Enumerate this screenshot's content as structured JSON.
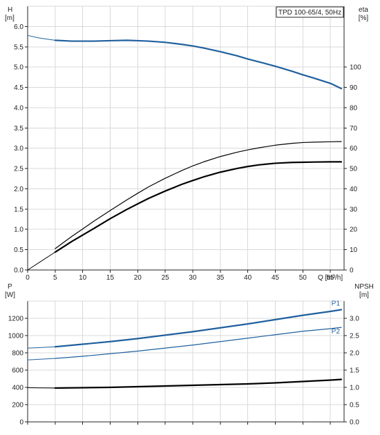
{
  "colors": {
    "blue": "#1f5f9e",
    "black": "#000000",
    "grid": "#d9d9d9"
  },
  "chart_data": [
    {
      "type": "line",
      "title": "TPD 100-65/4, 50Hz",
      "xlabel": "Q [m³/h]",
      "ylabel_left": "H\n[m]",
      "ylabel_right": "eta\n[%]",
      "xlim": [
        0,
        57.5
      ],
      "ylim_left": [
        0,
        6.5
      ],
      "ylim_right": [
        0,
        130
      ],
      "x_ticks": [
        0,
        5,
        10,
        15,
        20,
        25,
        30,
        35,
        40,
        45,
        50,
        55
      ],
      "y_left_ticks": [
        0.0,
        0.5,
        1.0,
        1.5,
        2.0,
        2.5,
        3.0,
        3.5,
        4.0,
        4.5,
        5.0,
        5.5,
        6.0
      ],
      "y_right_ticks": [
        0,
        10,
        20,
        30,
        40,
        50,
        60,
        70,
        80,
        90,
        100
      ],
      "grid": true,
      "series": [
        {
          "id": "H-ext",
          "axis": "left",
          "color": "#1f5f9e",
          "width": 1,
          "x": [
            0,
            2,
            5
          ],
          "y": [
            5.78,
            5.72,
            5.66
          ]
        },
        {
          "id": "H",
          "axis": "left",
          "color": "#1f5f9e",
          "width": 2.2,
          "x": [
            5,
            8,
            10,
            12,
            15,
            18,
            20,
            22,
            25,
            28,
            30,
            32,
            35,
            38,
            40,
            42,
            45,
            48,
            50,
            52,
            55,
            57
          ],
          "y": [
            5.66,
            5.64,
            5.64,
            5.64,
            5.65,
            5.66,
            5.65,
            5.64,
            5.61,
            5.56,
            5.52,
            5.47,
            5.38,
            5.28,
            5.2,
            5.13,
            5.02,
            4.9,
            4.81,
            4.73,
            4.6,
            4.47
          ]
        },
        {
          "id": "eta-ext",
          "axis": "right",
          "color": "#000000",
          "width": 1,
          "x": [
            0,
            2,
            5
          ],
          "y": [
            0,
            3.5,
            8.8
          ]
        },
        {
          "id": "eta-1",
          "axis": "right",
          "color": "#000000",
          "width": 1.2,
          "x": [
            5,
            8,
            10,
            12,
            15,
            18,
            20,
            22,
            25,
            28,
            30,
            32,
            35,
            38,
            40,
            42,
            45,
            48,
            50,
            52,
            55,
            57
          ],
          "y": [
            10.5,
            16.5,
            20.2,
            24.0,
            29.3,
            34.5,
            37.8,
            41.0,
            45.2,
            49.0,
            51.3,
            53.3,
            55.9,
            58.0,
            59.2,
            60.2,
            61.5,
            62.4,
            62.8,
            63.0,
            63.2,
            63.3
          ]
        },
        {
          "id": "eta-2",
          "axis": "right",
          "color": "#000000",
          "width": 2.2,
          "x": [
            5,
            8,
            10,
            12,
            15,
            18,
            20,
            22,
            25,
            28,
            30,
            32,
            35,
            38,
            40,
            42,
            45,
            48,
            50,
            52,
            55,
            57
          ],
          "y": [
            8.8,
            14.0,
            17.2,
            20.4,
            25.3,
            29.8,
            32.6,
            35.3,
            38.9,
            42.2,
            44.1,
            45.9,
            48.2,
            50.0,
            51.0,
            51.8,
            52.6,
            53.0,
            53.1,
            53.2,
            53.3,
            53.3
          ]
        }
      ]
    },
    {
      "type": "line",
      "xlabel": "",
      "ylabel_left": "P\n[W]",
      "ylabel_right": "NPSH\n[m]",
      "xlim": [
        0,
        57.5
      ],
      "ylim_left": [
        0,
        1400
      ],
      "ylim_right": [
        0,
        3.5
      ],
      "x_ticks": [
        0,
        5,
        10,
        15,
        20,
        25,
        30,
        35,
        40,
        45,
        50,
        55
      ],
      "y_left_ticks": [
        0,
        200,
        400,
        600,
        800,
        1000,
        1200
      ],
      "y_right_ticks": [
        0.0,
        0.5,
        1.0,
        1.5,
        2.0,
        2.5,
        3.0
      ],
      "grid": true,
      "series": [
        {
          "id": "P1-ext",
          "name": "",
          "axis": "left",
          "color": "#1f5f9e",
          "width": 1,
          "x": [
            0,
            2,
            5
          ],
          "y": [
            855,
            860,
            870
          ]
        },
        {
          "id": "P1",
          "name": "P1",
          "axis": "left",
          "color": "#1f5f9e",
          "width": 2.2,
          "x": [
            5,
            10,
            15,
            20,
            25,
            30,
            35,
            40,
            45,
            50,
            55,
            57
          ],
          "y": [
            870,
            900,
            930,
            965,
            1005,
            1045,
            1090,
            1135,
            1185,
            1235,
            1280,
            1300
          ]
        },
        {
          "id": "P2-ext",
          "name": "",
          "axis": "left",
          "color": "#1f5f9e",
          "width": 1,
          "x": [
            0,
            2,
            5
          ],
          "y": [
            718,
            725,
            735
          ]
        },
        {
          "id": "P2",
          "name": "P2",
          "axis": "left",
          "color": "#1f5f9e",
          "width": 1.2,
          "x": [
            5,
            10,
            15,
            20,
            25,
            30,
            35,
            40,
            45,
            50,
            55,
            57
          ],
          "y": [
            735,
            760,
            790,
            820,
            855,
            890,
            930,
            970,
            1010,
            1050,
            1080,
            1095
          ]
        },
        {
          "id": "NPSH-ext",
          "name": "",
          "axis": "right",
          "color": "#000000",
          "width": 1,
          "x": [
            0,
            2,
            5
          ],
          "y": [
            0.99,
            0.985,
            0.98
          ]
        },
        {
          "id": "NPSH",
          "name": "",
          "axis": "right",
          "color": "#000000",
          "width": 2.2,
          "x": [
            5,
            10,
            15,
            20,
            25,
            30,
            35,
            40,
            45,
            50,
            55,
            57
          ],
          "y": [
            0.98,
            0.99,
            1.0,
            1.02,
            1.04,
            1.06,
            1.08,
            1.1,
            1.13,
            1.17,
            1.21,
            1.23
          ]
        }
      ]
    }
  ]
}
